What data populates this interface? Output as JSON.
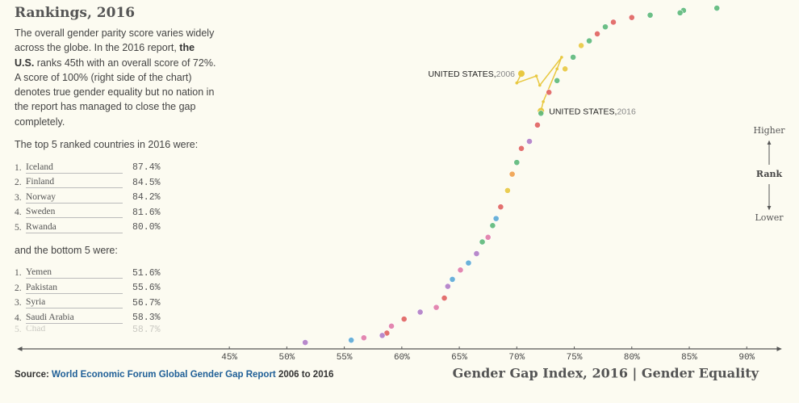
{
  "sidebar": {
    "title": "Rankings, 2016",
    "intro": [
      "The overall gender parity score varies widely across the globe. In the 2016 report, ",
      "the U.S.",
      " ranks 45th with an overall score of 72%. A score of 100% (right side of the chart) denotes true gender equality but no nation in the report has managed to close the gap completely."
    ],
    "top_heading": "The top 5 ranked countries in 2016 were:",
    "top": [
      {
        "rank": "1.",
        "name": "Iceland",
        "score": "87.4%"
      },
      {
        "rank": "2.",
        "name": "Finland",
        "score": "84.5%"
      },
      {
        "rank": "3.",
        "name": "Norway",
        "score": "84.2%"
      },
      {
        "rank": "4.",
        "name": "Sweden",
        "score": "81.6%"
      },
      {
        "rank": "5.",
        "name": "Rwanda",
        "score": "80.0%"
      }
    ],
    "bottom_heading": "and the bottom 5 were:",
    "bottom": [
      {
        "rank": "1.",
        "name": "Yemen",
        "score": "51.6%"
      },
      {
        "rank": "2.",
        "name": "Pakistan",
        "score": "55.6%"
      },
      {
        "rank": "3.",
        "name": "Syria",
        "score": "56.7%"
      },
      {
        "rank": "4.",
        "name": "Saudi Arabia",
        "score": "58.3%"
      },
      {
        "rank": "5.",
        "name": "Chad",
        "score": "58.7%"
      }
    ]
  },
  "source": {
    "label": "Source:",
    "link": "World Economic Forum Global Gender Gap Report",
    "suffix": "2006 to 2016"
  },
  "chart_data": {
    "type": "scatter",
    "x_label": "Gender Gap Index, 2016 | Gender Equality",
    "y_label": "Rank",
    "y_top_label": "Higher",
    "y_bottom_label": "Lower",
    "xlim": [
      26.6,
      93
    ],
    "ylim": [
      146.4,
      -1.1
    ],
    "xticks": [
      {
        "value": 45,
        "label": "45%"
      },
      {
        "value": 50,
        "label": "50%"
      },
      {
        "value": 55,
        "label": "55%"
      },
      {
        "value": 60,
        "label": "60%"
      },
      {
        "value": 65,
        "label": "65%"
      },
      {
        "value": 70,
        "label": "70%"
      },
      {
        "value": 75,
        "label": "75%"
      },
      {
        "value": 80,
        "label": "80%"
      },
      {
        "value": 85,
        "label": "85%"
      },
      {
        "value": 90,
        "label": "90%"
      }
    ],
    "series": [
      {
        "x": [
          87.4,
          84.5,
          84.2,
          81.6,
          80.0,
          78.4,
          77.7,
          77.0,
          76.3,
          75.6,
          74.9,
          74.2,
          73.5,
          72.8,
          72.1,
          71.8,
          71.1,
          70.4,
          70.0,
          69.6,
          69.2,
          68.6,
          68.2,
          67.9,
          67.5,
          67.0,
          66.5,
          65.8,
          65.1,
          64.4,
          64.0,
          63.7,
          63.0,
          61.6,
          60.2,
          59.1,
          58.7,
          58.3,
          56.7,
          55.6,
          51.6
        ],
        "values": [
          1,
          2,
          3,
          4,
          5,
          7,
          9,
          12,
          15,
          17,
          22,
          27,
          32,
          37,
          46,
          51,
          58,
          61,
          67,
          72,
          79,
          86,
          91,
          94,
          99,
          101,
          106,
          110,
          113,
          117,
          120,
          125,
          129,
          131,
          134,
          137,
          140,
          141,
          142,
          143,
          144
        ],
        "colors": [
          "#5cb87a",
          "#5cb87a",
          "#5cb87a",
          "#5cb87a",
          "#e0625f",
          "#e0625f",
          "#5cb87a",
          "#e0625f",
          "#5cb87a",
          "#e8c840",
          "#5cb87a",
          "#e8c840",
          "#5cb87a",
          "#e0625f",
          "#5cb87a",
          "#e0625f",
          "#b07cc6",
          "#e0625f",
          "#5cb87a",
          "#f0a04b",
          "#e8c840",
          "#e0625f",
          "#5aa9d6",
          "#5cb87a",
          "#e07aa9",
          "#5cb87a",
          "#b07cc6",
          "#5aa9d6",
          "#e07aa9",
          "#5aa9d6",
          "#b07cc6",
          "#e0625f",
          "#e07aa9",
          "#b07cc6",
          "#e0625f",
          "#e07aa9",
          "#e0625f",
          "#b07cc6",
          "#e07aa9",
          "#5aa9d6",
          "#b07cc6"
        ]
      },
      {
        "color": "#e8c840",
        "x": [
          70.4,
          70.0,
          71.7,
          72.0,
          73.9,
          73.5,
          72.3,
          72.1
        ],
        "values": [
          29,
          33,
          30,
          34,
          22,
          27,
          41,
          45
        ]
      }
    ],
    "annotations": [
      {
        "text": "UNITED STATES,",
        "year": "2006"
      },
      {
        "text": "UNITED STATES,",
        "year": "2016"
      }
    ]
  }
}
